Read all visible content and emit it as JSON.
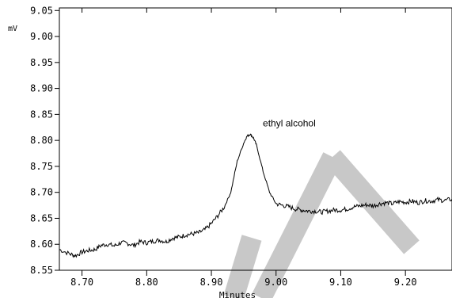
{
  "chart_data": {
    "type": "line",
    "y_unit": "mV",
    "xlabel": "Minutes",
    "xlim": [
      8.665,
      9.272
    ],
    "ylim": [
      8.55,
      9.055
    ],
    "x_ticks": [
      "8.70",
      "8.80",
      "8.90",
      "9.00",
      "9.10",
      "9.20"
    ],
    "y_ticks": [
      "9.05",
      "9.00",
      "8.95",
      "8.90",
      "8.85",
      "8.80",
      "8.75",
      "8.70",
      "8.65",
      "8.60",
      "8.55"
    ],
    "annotation": {
      "text": "ethyl alcohol",
      "x": 8.96,
      "y": 8.81
    },
    "watermark_color": "#c8c8c8",
    "line_color": "#000000",
    "series": [
      {
        "x": [
          8.665,
          8.68,
          8.69,
          8.7,
          8.71,
          8.72,
          8.73,
          8.74,
          8.75,
          8.76,
          8.77,
          8.78,
          8.79,
          8.8,
          8.81,
          8.82,
          8.83,
          8.84,
          8.85,
          8.86,
          8.87,
          8.88,
          8.89,
          8.9,
          8.91,
          8.92,
          8.93,
          8.94,
          8.95,
          8.955,
          8.96,
          8.965,
          8.97,
          8.98,
          8.99,
          9.0,
          9.01,
          9.02,
          9.03,
          9.04,
          9.05,
          9.06,
          9.07,
          9.08,
          9.09,
          9.1,
          9.11,
          9.12,
          9.13,
          9.14,
          9.15,
          9.16,
          9.17,
          9.18,
          9.19,
          9.2,
          9.21,
          9.22,
          9.23,
          9.24,
          9.25,
          9.26,
          9.272
        ],
        "y": [
          8.59,
          8.582,
          8.578,
          8.585,
          8.588,
          8.59,
          8.598,
          8.6,
          8.597,
          8.603,
          8.602,
          8.598,
          8.605,
          8.603,
          8.606,
          8.608,
          8.605,
          8.612,
          8.614,
          8.618,
          8.62,
          8.622,
          8.628,
          8.64,
          8.655,
          8.672,
          8.7,
          8.76,
          8.795,
          8.808,
          8.812,
          8.805,
          8.79,
          8.74,
          8.7,
          8.678,
          8.675,
          8.672,
          8.668,
          8.666,
          8.664,
          8.664,
          8.662,
          8.664,
          8.666,
          8.666,
          8.668,
          8.672,
          8.674,
          8.676,
          8.674,
          8.678,
          8.68,
          8.678,
          8.682,
          8.681,
          8.683,
          8.68,
          8.684,
          8.683,
          8.686,
          8.684,
          8.687
        ]
      }
    ]
  }
}
